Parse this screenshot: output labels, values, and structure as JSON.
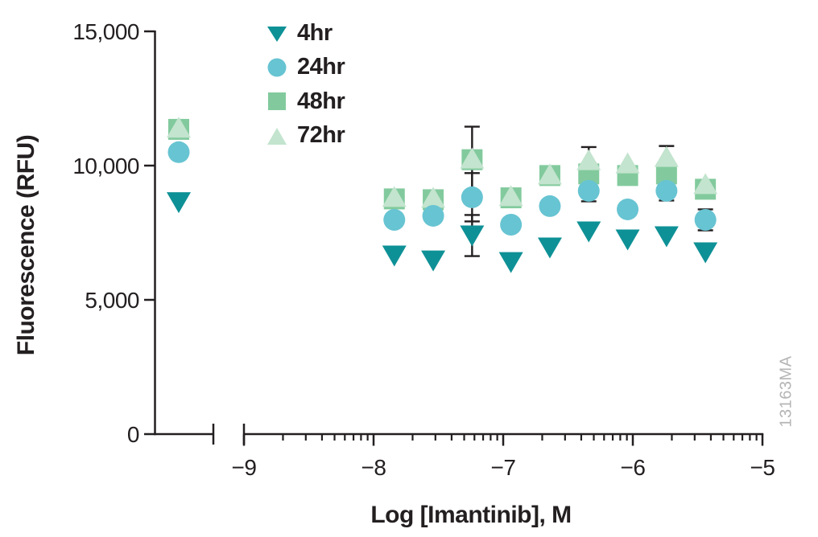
{
  "figure": {
    "watermark": "13163MA"
  },
  "chart_data": {
    "type": "scatter",
    "title": "",
    "xlabel": "Log [Imantinib], M",
    "ylabel": "Fluorescence (RFU)",
    "ink_color": "#231f20",
    "watermark_color": "#b5b5b5",
    "grid": false,
    "legend_position": "upper-left-inside",
    "x_axis": {
      "scale": "log (labels are log10 molar)",
      "range": [
        -9,
        -5
      ],
      "axis_break": "broken axis between untreated-control column and -9",
      "ticks": [
        {
          "value": -9,
          "label": "−9"
        },
        {
          "value": -8,
          "label": "−8"
        },
        {
          "value": -7,
          "label": "−7"
        },
        {
          "value": -6,
          "label": "−6"
        },
        {
          "value": -5,
          "label": "−5"
        }
      ],
      "minor_ticks": "log sub-decade ticks (2–9) in each decade from −9 to −5"
    },
    "y_axis": {
      "range": [
        0,
        15000
      ],
      "ticks": [
        {
          "value": 0,
          "label": "0"
        },
        {
          "value": 5000,
          "label": "5,000"
        },
        {
          "value": 10000,
          "label": "10,000"
        },
        {
          "value": 15000,
          "label": "15,000"
        }
      ]
    },
    "control_note": "points with x = null are the 0 µM (untreated) control plotted left of the axis break",
    "marker_z_order": [
      "48hr",
      "72hr",
      "24hr",
      "4hr"
    ],
    "series": [
      {
        "name": "4hr",
        "marker": "triangle-down",
        "color": "#0e9196",
        "points": [
          {
            "x": null,
            "y": 8650
          },
          {
            "x": -7.84,
            "y": 6660
          },
          {
            "x": -7.54,
            "y": 6480
          },
          {
            "x": -7.24,
            "y": 7410,
            "err": [
              750,
              780
            ]
          },
          {
            "x": -6.94,
            "y": 6420
          },
          {
            "x": -6.64,
            "y": 6960
          },
          {
            "x": -6.34,
            "y": 7560
          },
          {
            "x": -6.04,
            "y": 7260
          },
          {
            "x": -5.74,
            "y": 7380
          },
          {
            "x": -5.44,
            "y": 6780
          }
        ]
      },
      {
        "name": "24hr",
        "marker": "circle",
        "color": "#67c4d2",
        "points": [
          {
            "x": null,
            "y": 10500
          },
          {
            "x": -7.84,
            "y": 7980
          },
          {
            "x": -7.54,
            "y": 8130
          },
          {
            "x": -7.24,
            "y": 8820,
            "err": 900
          },
          {
            "x": -6.94,
            "y": 7800
          },
          {
            "x": -6.64,
            "y": 8490
          },
          {
            "x": -6.34,
            "y": 9060,
            "err": 390
          },
          {
            "x": -6.04,
            "y": 8370
          },
          {
            "x": -5.74,
            "y": 9060,
            "err": 360
          },
          {
            "x": -5.44,
            "y": 7980,
            "err": 390
          }
        ]
      },
      {
        "name": "48hr",
        "marker": "square",
        "color": "#82ca9d",
        "points": [
          {
            "x": null,
            "y": 11350
          },
          {
            "x": -7.84,
            "y": 8760
          },
          {
            "x": -7.54,
            "y": 8730
          },
          {
            "x": -7.24,
            "y": 10220,
            "err": [
              1230,
              1170
            ]
          },
          {
            "x": -6.94,
            "y": 8800
          },
          {
            "x": -6.64,
            "y": 9630
          },
          {
            "x": -6.34,
            "y": 9690,
            "err": 400
          },
          {
            "x": -6.04,
            "y": 9630
          },
          {
            "x": -5.74,
            "y": 9690
          },
          {
            "x": -5.44,
            "y": 9120
          }
        ]
      },
      {
        "name": "72hr",
        "marker": "triangle-up",
        "color": "#c3e4ce",
        "points": [
          {
            "x": null,
            "y": 11400
          },
          {
            "x": -7.84,
            "y": 8820
          },
          {
            "x": -7.54,
            "y": 8790
          },
          {
            "x": -7.24,
            "y": 10250
          },
          {
            "x": -6.94,
            "y": 8850
          },
          {
            "x": -6.64,
            "y": 9660
          },
          {
            "x": -6.34,
            "y": 10190,
            "err": 500
          },
          {
            "x": -6.04,
            "y": 10070
          },
          {
            "x": -5.74,
            "y": 10310,
            "err": 420
          },
          {
            "x": -5.44,
            "y": 9300
          }
        ]
      }
    ]
  }
}
